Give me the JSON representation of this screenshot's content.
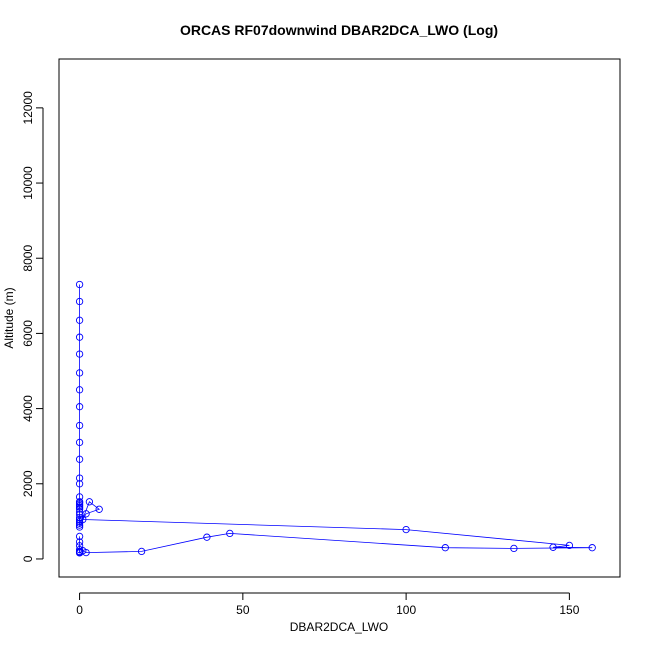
{
  "chart_data": {
    "type": "scatter",
    "title": "ORCAS RF07downwind DBAR2DCA_LWO (Log)",
    "xlabel": "DBAR2DCA_LWO",
    "ylabel": "Altitude (m)",
    "xlim": [
      -6.3,
      165.5
    ],
    "ylim": [
      -480,
      13300
    ],
    "xticks": [
      0,
      50,
      100,
      150
    ],
    "yticks": [
      0,
      2000,
      4000,
      6000,
      8000,
      10000,
      12000
    ],
    "grid": false,
    "series_color": "#0000ff",
    "x": [
      0,
      0,
      0,
      0,
      0,
      0,
      0,
      0,
      0,
      0,
      0,
      0,
      0,
      0,
      0,
      0,
      0,
      0,
      0,
      0,
      0,
      0,
      0,
      0,
      0,
      0,
      0,
      0,
      3,
      6,
      2,
      1,
      100,
      150,
      145,
      157,
      133,
      112,
      46,
      39,
      19,
      2,
      1,
      0,
      0,
      0,
      0,
      0,
      0,
      0
    ],
    "y": [
      7300,
      6850,
      6350,
      5900,
      5450,
      4950,
      4500,
      4050,
      3550,
      3100,
      2650,
      2150,
      2000,
      1650,
      1520,
      1500,
      1460,
      1420,
      1380,
      1330,
      1250,
      1180,
      1100,
      1050,
      1000,
      950,
      900,
      850,
      1520,
      1320,
      1200,
      1050,
      780,
      360,
      310,
      300,
      280,
      300,
      680,
      580,
      200,
      170,
      220,
      160,
      180,
      200,
      250,
      350,
      450,
      600
    ]
  }
}
